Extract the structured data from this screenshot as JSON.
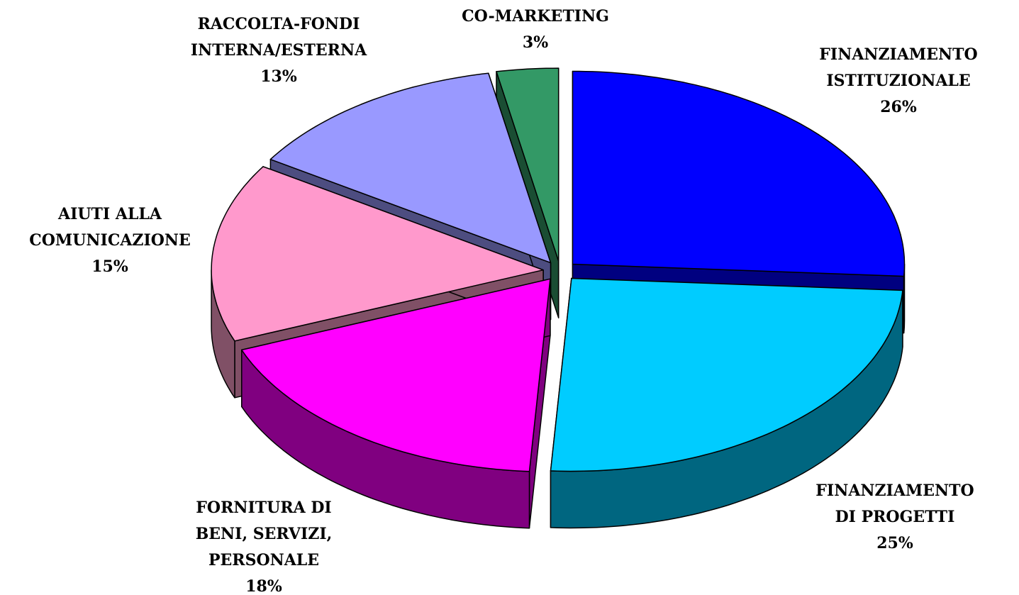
{
  "chart_data": {
    "type": "pie3d",
    "categories": [
      [
        "FINANZIAMENTO",
        "ISTITUZIONALE"
      ],
      [
        "FINANZIAMENTO",
        "DI PROGETTI"
      ],
      [
        "FORNITURA DI",
        "BENI, SERVIZI,",
        "PERSONALE"
      ],
      [
        "AIUTI ALLA",
        "COMUNICAZIONE"
      ],
      [
        "RACCOLTA-FONDI",
        "INTERNA/ESTERNA"
      ],
      [
        "CO-MARKETING"
      ]
    ],
    "values": [
      26,
      25,
      18,
      15,
      13,
      3
    ],
    "value_labels": [
      "26%",
      "25%",
      "18%",
      "15%",
      "13%",
      "3%"
    ],
    "colors": [
      "#0000ff",
      "#00ccff",
      "#ff00ff",
      "#ff99cc",
      "#9999ff",
      "#339966"
    ],
    "side_colors": [
      "#000080",
      "#006680",
      "#800080",
      "#805066",
      "#4d4d80",
      "#1a4d33"
    ]
  }
}
